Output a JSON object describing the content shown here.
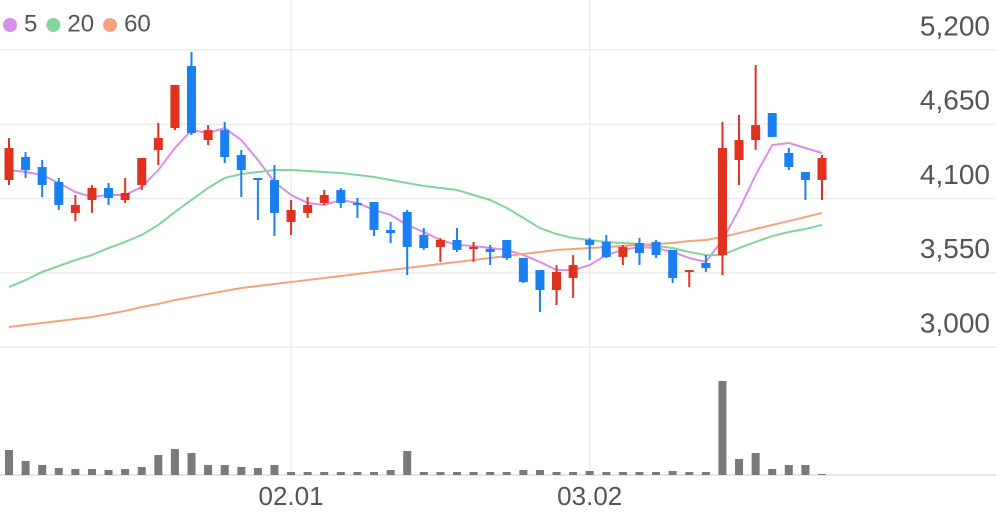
{
  "chart_data": {
    "type": "candlestick",
    "categories": [
      null,
      null,
      null,
      null,
      null,
      null,
      null,
      null,
      null,
      null,
      null,
      null,
      null,
      null,
      null,
      null,
      null,
      "02.01",
      null,
      null,
      null,
      null,
      null,
      null,
      null,
      null,
      null,
      null,
      null,
      null,
      null,
      null,
      null,
      null,
      null,
      "03.02",
      null,
      null,
      null,
      null,
      null,
      null,
      null,
      null,
      null,
      null,
      null,
      null,
      null,
      null
    ],
    "open": [
      4237,
      4407,
      4333,
      4222,
      3993,
      4089,
      4178,
      4089,
      4200,
      4459,
      4622,
      5081,
      4533,
      4607,
      4422,
      4252,
      4237,
      3926,
      3993,
      4067,
      4163,
      4067,
      4074,
      3867,
      4000,
      3830,
      3741,
      3793,
      3726,
      3726,
      3793,
      3659,
      3570,
      3422,
      3511,
      3793,
      3778,
      3667,
      3770,
      3778,
      3719,
      3556,
      3622,
      3681,
      4385,
      4533,
      4733,
      4437,
      4296,
      4237
    ],
    "high": [
      4548,
      4444,
      4385,
      4252,
      4126,
      4200,
      4215,
      4252,
      4400,
      4659,
      4941,
      5185,
      4644,
      4667,
      4459,
      4252,
      4348,
      4089,
      4111,
      4163,
      4178,
      4104,
      4074,
      3926,
      4015,
      3881,
      3807,
      3881,
      3778,
      3756,
      3793,
      3659,
      3570,
      3607,
      3681,
      3807,
      3830,
      3756,
      3807,
      3793,
      3719,
      3570,
      3681,
      4667,
      4719,
      5089,
      4733,
      4474,
      4296,
      4422
    ],
    "low": [
      4200,
      4252,
      4111,
      4015,
      3933,
      3993,
      4052,
      4067,
      4163,
      4348,
      4607,
      4570,
      4496,
      4363,
      4111,
      3941,
      3822,
      3830,
      3956,
      4052,
      4030,
      3956,
      3822,
      3770,
      3533,
      3719,
      3630,
      3704,
      3630,
      3607,
      3644,
      3474,
      3259,
      3311,
      3363,
      3644,
      3659,
      3607,
      3607,
      3659,
      3474,
      3444,
      3556,
      3533,
      4200,
      4459,
      4556,
      4311,
      4089,
      4089
    ],
    "close": [
      4474,
      4311,
      4200,
      4052,
      4052,
      4178,
      4104,
      4141,
      4400,
      4548,
      4941,
      4585,
      4607,
      4407,
      4311,
      4237,
      3993,
      4015,
      4052,
      4126,
      4067,
      4052,
      3867,
      3844,
      3741,
      3733,
      3793,
      3719,
      3741,
      3704,
      3659,
      3481,
      3422,
      3556,
      3607,
      3756,
      3667,
      3741,
      3696,
      3681,
      3511,
      3570,
      3585,
      4474,
      4533,
      4644,
      4556,
      4333,
      4237,
      4400
    ],
    "up_color": "#e0321e",
    "down_color": "#1a7ff0",
    "series": [
      {
        "name": "5",
        "color": "#d98ee8",
        "values": [
          4311,
          4296,
          4274,
          4215,
          4148,
          4111,
          4126,
          4126,
          4185,
          4311,
          4474,
          4607,
          4585,
          4622,
          4533,
          4385,
          4222,
          4126,
          4067,
          4052,
          4089,
          4067,
          4015,
          3978,
          3904,
          3852,
          3793,
          3756,
          3748,
          3733,
          3719,
          3681,
          3630,
          3570,
          3570,
          3607,
          3681,
          3719,
          3741,
          3733,
          3704,
          3659,
          3630,
          3793,
          4015,
          4274,
          4496,
          4511,
          4474,
          4437
        ]
      },
      {
        "name": "20",
        "color": "#82d49c",
        "values": [
          3444,
          3496,
          3556,
          3600,
          3644,
          3681,
          3733,
          3778,
          3830,
          3904,
          4000,
          4089,
          4178,
          4252,
          4281,
          4296,
          4311,
          4311,
          4304,
          4296,
          4289,
          4274,
          4259,
          4237,
          4215,
          4193,
          4178,
          4163,
          4126,
          4089,
          4030,
          3956,
          3881,
          3837,
          3807,
          3793,
          3778,
          3770,
          3763,
          3748,
          3733,
          3704,
          3681,
          3681,
          3733,
          3778,
          3822,
          3852,
          3874,
          3904
        ]
      },
      {
        "name": "60",
        "color": "#f4a27e",
        "values": [
          3148,
          3163,
          3178,
          3193,
          3207,
          3222,
          3244,
          3267,
          3296,
          3319,
          3348,
          3370,
          3393,
          3415,
          3437,
          3452,
          3467,
          3481,
          3496,
          3511,
          3526,
          3541,
          3556,
          3570,
          3585,
          3600,
          3615,
          3630,
          3644,
          3659,
          3674,
          3689,
          3704,
          3719,
          3726,
          3733,
          3741,
          3748,
          3756,
          3763,
          3770,
          3785,
          3793,
          3815,
          3844,
          3874,
          3904,
          3933,
          3963,
          3993
        ]
      }
    ],
    "volume": [
      25,
      14,
      10,
      7,
      6,
      6,
      5,
      6,
      8,
      20,
      26,
      22,
      10,
      10,
      8,
      7,
      10,
      3,
      3,
      3,
      3,
      3,
      3,
      5,
      24,
      3,
      3,
      3,
      3,
      3,
      3,
      5,
      5,
      3,
      3,
      4,
      3,
      3,
      3,
      3,
      4,
      3,
      3,
      94,
      16,
      22,
      6,
      10,
      10,
      1
    ],
    "volume_color": "#7a7a7a",
    "volume_lim": [
      0,
      115
    ],
    "ylim": [
      3000,
      5200
    ],
    "yticks": [
      {
        "value": 5200,
        "label": "5,200"
      },
      {
        "value": 4650,
        "label": "4,650"
      },
      {
        "value": 4100,
        "label": "4,100"
      },
      {
        "value": 3550,
        "label": "3,550"
      },
      {
        "value": 3000,
        "label": "3,000"
      }
    ],
    "grid": true
  }
}
